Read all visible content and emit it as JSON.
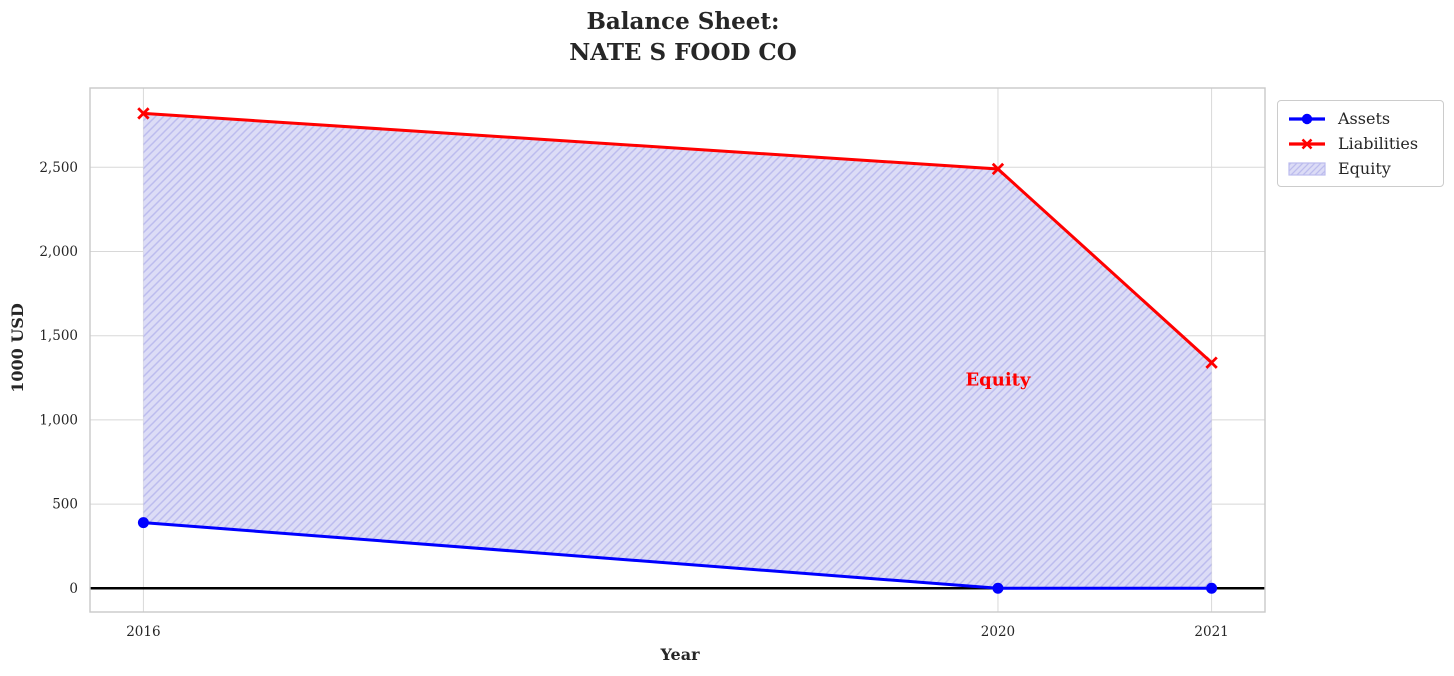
{
  "chart_data": {
    "type": "line",
    "title": "Balance Sheet:\nNATE S FOOD CO",
    "xlabel": "Year",
    "ylabel": "1000 USD",
    "x": [
      2016,
      2020,
      2021
    ],
    "series": [
      {
        "name": "Assets",
        "values": [
          390,
          0,
          0
        ],
        "color": "#0000ff",
        "marker": "circle",
        "linewidth": 3
      },
      {
        "name": "Liabilities",
        "values": [
          2820,
          2490,
          1340
        ],
        "color": "#ff0000",
        "marker": "x",
        "linewidth": 3
      }
    ],
    "equity_area": {
      "label": "Equity",
      "between": [
        "Liabilities",
        "Assets"
      ],
      "fill": "#dcdcf6",
      "hatch_color": "#bcbcee",
      "hatch": "//"
    },
    "annotation": {
      "text": "Equity",
      "x": 2020,
      "y": 1240,
      "color": "#ff0000"
    },
    "xlim": [
      2015.75,
      2021.25
    ],
    "ylim": [
      -141,
      2971
    ],
    "xticks": [
      {
        "value": 2016,
        "label": "2016"
      },
      {
        "value": 2020,
        "label": "2020"
      },
      {
        "value": 2021,
        "label": "2021"
      }
    ],
    "yticks": [
      {
        "value": 0,
        "label": "0"
      },
      {
        "value": 500,
        "label": "500"
      },
      {
        "value": 1000,
        "label": "1,000"
      },
      {
        "value": 1500,
        "label": "1,500"
      },
      {
        "value": 2000,
        "label": "2,000"
      },
      {
        "value": 2500,
        "label": "2,500"
      }
    ],
    "grid": true,
    "zero_line": {
      "y": 0,
      "color": "#000000"
    },
    "colors": {
      "grid": "#d8d8d8",
      "axis_border": "#c9c9c9",
      "text": "#262626"
    },
    "legend": {
      "position": "upper-right-outside",
      "items": [
        {
          "label": "Assets",
          "swatch": "line-circle"
        },
        {
          "label": "Liabilities",
          "swatch": "line-x"
        },
        {
          "label": "Equity",
          "swatch": "hatch-patch"
        }
      ]
    }
  }
}
